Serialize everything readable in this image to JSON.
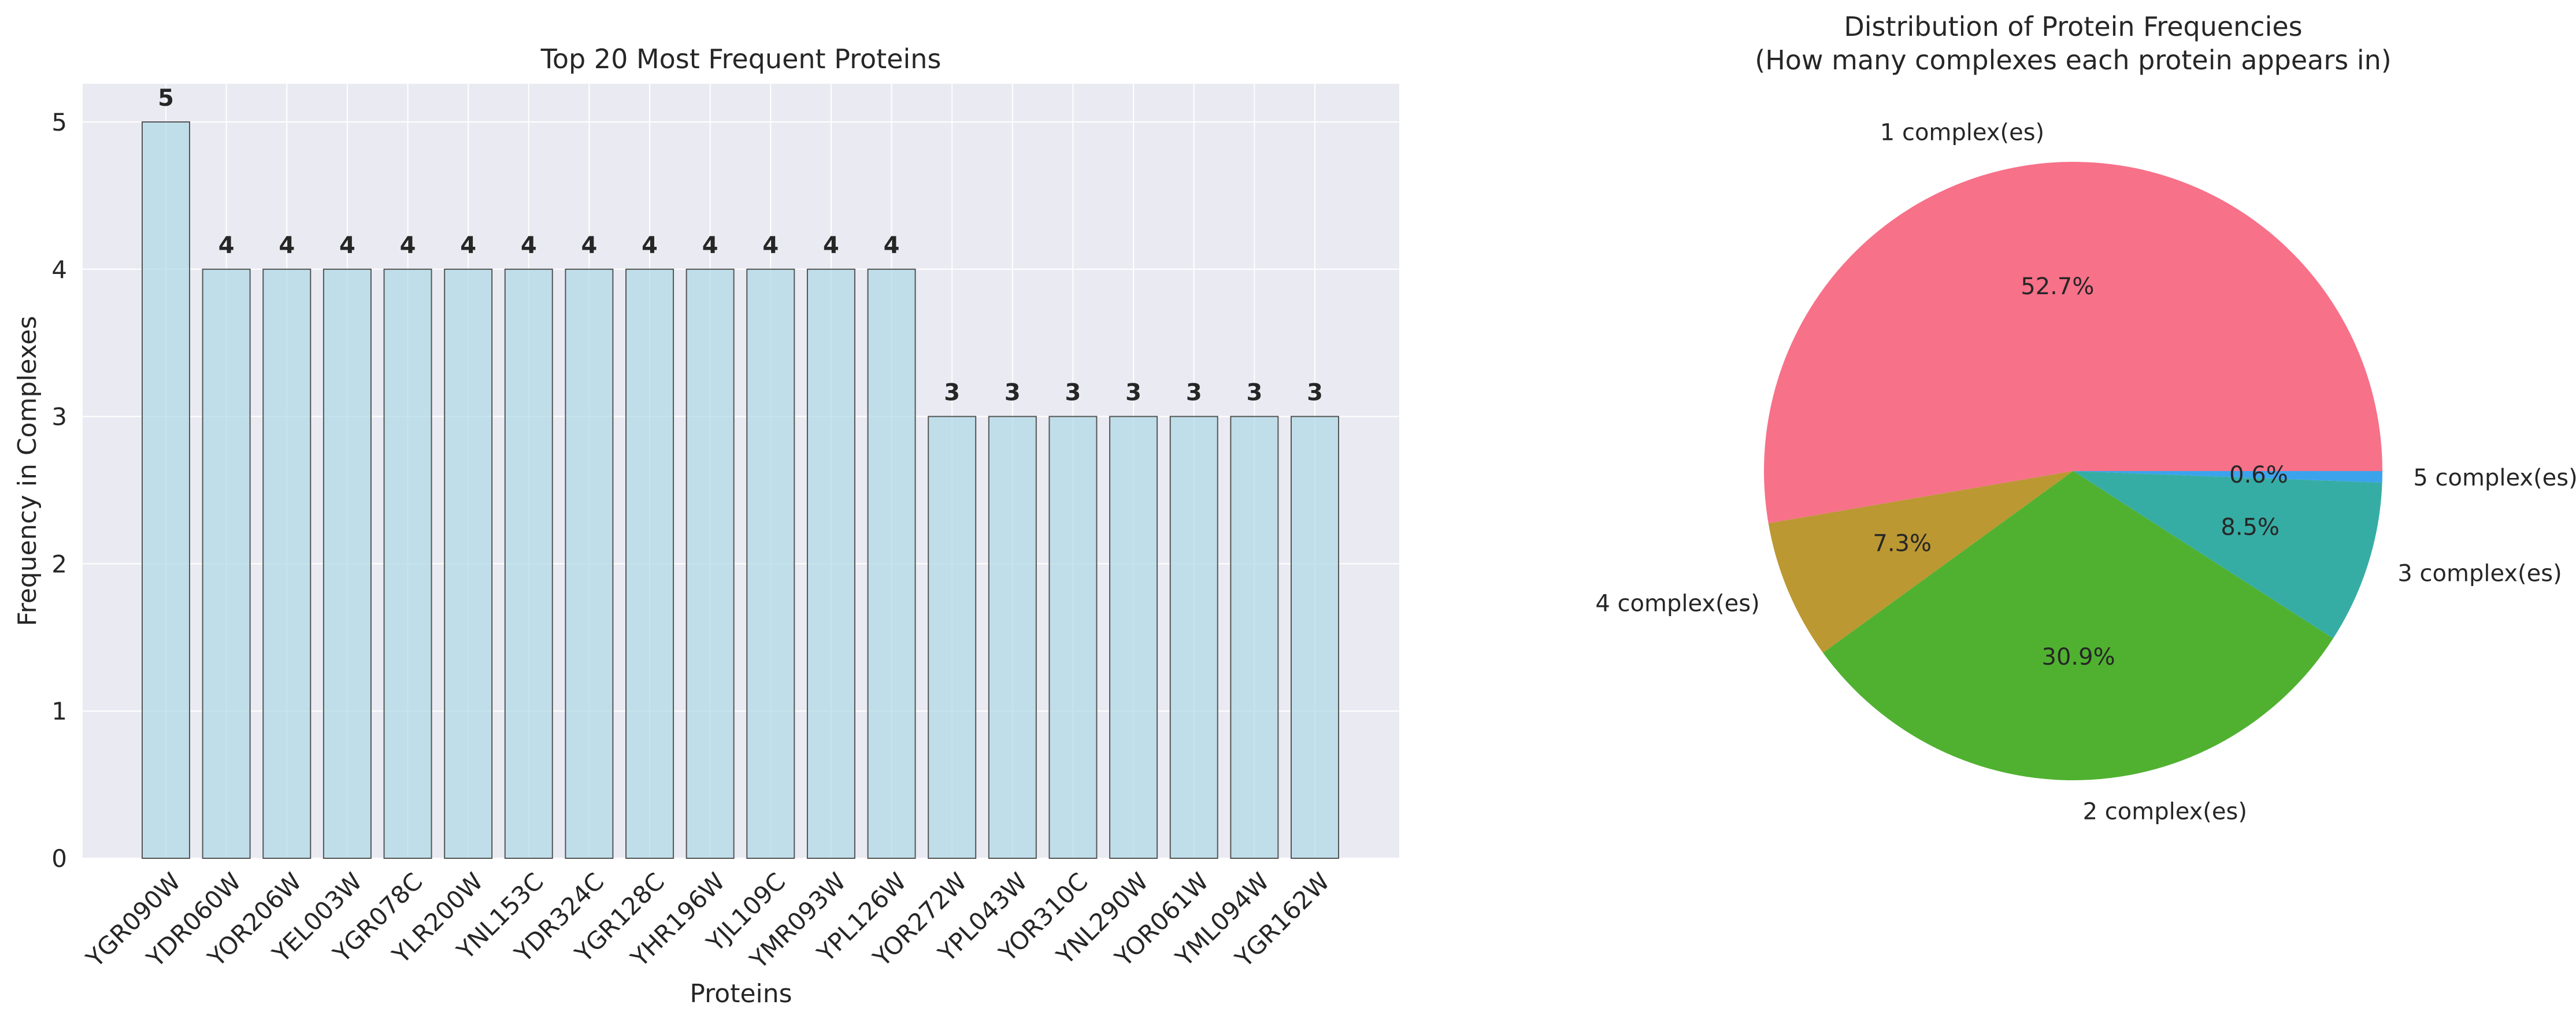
{
  "chart_data": [
    {
      "type": "bar",
      "title": "Top 20 Most Frequent Proteins",
      "xlabel": "Proteins",
      "ylabel": "Frequency in Complexes",
      "categories": [
        "YGR090W",
        "YDR060W",
        "YOR206W",
        "YEL003W",
        "YGR078C",
        "YLR200W",
        "YNL153C",
        "YDR324C",
        "YGR128C",
        "YHR196W",
        "YJL109C",
        "YMR093W",
        "YPL126W",
        "YOR272W",
        "YPL043W",
        "YOR310C",
        "YNL290W",
        "YOR061W",
        "YML094W",
        "YGR162W"
      ],
      "values": [
        5,
        4,
        4,
        4,
        4,
        4,
        4,
        4,
        4,
        4,
        4,
        4,
        4,
        3,
        3,
        3,
        3,
        3,
        3,
        3
      ],
      "data_labels": [
        "5",
        "4",
        "4",
        "4",
        "4",
        "4",
        "4",
        "4",
        "4",
        "4",
        "4",
        "4",
        "4",
        "3",
        "3",
        "3",
        "3",
        "3",
        "3",
        "3"
      ],
      "ylim": [
        0,
        5.25
      ],
      "yticks": [
        "0",
        "1",
        "2",
        "3",
        "4",
        "5"
      ],
      "grid": true,
      "bar_color": "#add8e6",
      "background": "#eaeaf2"
    },
    {
      "type": "pie",
      "title": "Distribution of Protein Frequencies",
      "subtitle": "(How many complexes each protein appears in)",
      "slices": [
        {
          "label": "1 complex(es)",
          "value": 52.7,
          "pct_label": "52.7%",
          "color": "#f77189"
        },
        {
          "label": "2 complex(es)",
          "value": 30.9,
          "pct_label": "30.9%",
          "color": "#50b131"
        },
        {
          "label": "3 complex(es)",
          "value": 8.5,
          "pct_label": "8.5%",
          "color": "#36ada4"
        },
        {
          "label": "4 complex(es)",
          "value": 7.3,
          "pct_label": "7.3%",
          "color": "#bb9832"
        },
        {
          "label": "5 complex(es)",
          "value": 0.6,
          "pct_label": "0.6%",
          "color": "#3ba3ec"
        }
      ],
      "slice_order": [
        "1 complex(es)",
        "4 complex(es)",
        "2 complex(es)",
        "3 complex(es)",
        "5 complex(es)"
      ]
    }
  ]
}
